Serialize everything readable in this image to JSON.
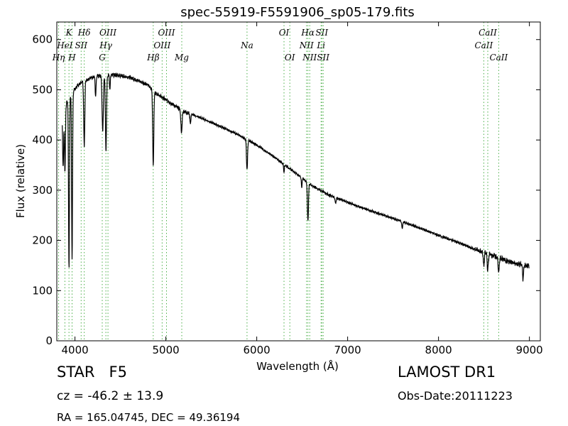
{
  "chart_data": {
    "type": "line",
    "title": "spec-55919-F5591906_sp05-179.fits",
    "xlabel": "Wavelength (Å)",
    "ylabel": "Flux (relative)",
    "xlim": [
      3800,
      9120
    ],
    "ylim": [
      0,
      635
    ],
    "xticks": [
      4000,
      5000,
      6000,
      7000,
      8000,
      9000
    ],
    "yticks": [
      0,
      100,
      200,
      300,
      400,
      500,
      600
    ],
    "grid": false,
    "legend": "none",
    "line_color": "#000000",
    "marker_color": "#4daf4a",
    "continuum": [
      [
        3860,
        455
      ],
      [
        3900,
        470
      ],
      [
        3950,
        490
      ],
      [
        4000,
        502
      ],
      [
        4050,
        512
      ],
      [
        4100,
        518
      ],
      [
        4200,
        526
      ],
      [
        4300,
        528
      ],
      [
        4400,
        530
      ],
      [
        4500,
        528
      ],
      [
        4600,
        525
      ],
      [
        4700,
        518
      ],
      [
        4800,
        510
      ],
      [
        4900,
        492
      ],
      [
        5000,
        480
      ],
      [
        5100,
        468
      ],
      [
        5200,
        457
      ],
      [
        5400,
        443
      ],
      [
        5600,
        427
      ],
      [
        5800,
        410
      ],
      [
        6000,
        390
      ],
      [
        6200,
        365
      ],
      [
        6400,
        338
      ],
      [
        6600,
        310
      ],
      [
        6800,
        290
      ],
      [
        7000,
        276
      ],
      [
        7200,
        262
      ],
      [
        7400,
        250
      ],
      [
        7600,
        238
      ],
      [
        7800,
        224
      ],
      [
        8000,
        210
      ],
      [
        8200,
        197
      ],
      [
        8400,
        182
      ],
      [
        8600,
        170
      ],
      [
        8800,
        156
      ],
      [
        9000,
        148
      ]
    ],
    "absorption": [
      {
        "x": 3870,
        "depth": 110,
        "width": 6
      },
      {
        "x": 3890,
        "depth": 130,
        "width": 5
      },
      {
        "x": 3934,
        "depth": 340,
        "width": 5
      },
      {
        "x": 3968,
        "depth": 330,
        "width": 5
      },
      {
        "x": 4102,
        "depth": 130,
        "width": 6
      },
      {
        "x": 4227,
        "depth": 40,
        "width": 5
      },
      {
        "x": 4305,
        "depth": 110,
        "width": 7
      },
      {
        "x": 4341,
        "depth": 150,
        "width": 6
      },
      {
        "x": 4384,
        "depth": 30,
        "width": 4
      },
      {
        "x": 4861,
        "depth": 150,
        "width": 6
      },
      {
        "x": 5172,
        "depth": 45,
        "width": 7
      },
      {
        "x": 5270,
        "depth": 20,
        "width": 5
      },
      {
        "x": 5893,
        "depth": 60,
        "width": 6
      },
      {
        "x": 6300,
        "depth": 15,
        "width": 4
      },
      {
        "x": 6495,
        "depth": 20,
        "width": 4
      },
      {
        "x": 6563,
        "depth": 75,
        "width": 6
      },
      {
        "x": 6867,
        "depth": 12,
        "width": 5
      },
      {
        "x": 7600,
        "depth": 14,
        "width": 6
      },
      {
        "x": 8498,
        "depth": 26,
        "width": 6
      },
      {
        "x": 8542,
        "depth": 34,
        "width": 6
      },
      {
        "x": 8662,
        "depth": 30,
        "width": 6
      },
      {
        "x": 8930,
        "depth": 28,
        "width": 5
      }
    ],
    "line_markers": [
      {
        "x": 3820,
        "label": "Hη",
        "row": 3
      },
      {
        "x": 3889,
        "label": "HeI",
        "row": 2
      },
      {
        "x": 3934,
        "label": "K",
        "row": 1
      },
      {
        "x": 3968,
        "label": "H",
        "row": 3
      },
      {
        "x": 4068,
        "label": "SII",
        "row": 2
      },
      {
        "x": 4102,
        "label": "Hδ",
        "row": 1
      },
      {
        "x": 4300,
        "label": "G",
        "row": 3
      },
      {
        "x": 4340,
        "label": "Hγ",
        "row": 2
      },
      {
        "x": 4363,
        "label": "OIII",
        "row": 1
      },
      {
        "x": 4861,
        "label": "Hβ",
        "row": 3
      },
      {
        "x": 4959,
        "label": "OIII",
        "row": 2
      },
      {
        "x": 5007,
        "label": "OIII",
        "row": 1
      },
      {
        "x": 5175,
        "label": "Mg",
        "row": 3
      },
      {
        "x": 5893,
        "label": "Na",
        "row": 2
      },
      {
        "x": 6300,
        "label": "OI",
        "row": 1
      },
      {
        "x": 6364,
        "label": "OI",
        "row": 3
      },
      {
        "x": 6548,
        "label": "NII",
        "row": 2
      },
      {
        "x": 6563,
        "label": "Hα",
        "row": 1
      },
      {
        "x": 6583,
        "label": "NII",
        "row": 3
      },
      {
        "x": 6708,
        "label": "Li",
        "row": 2
      },
      {
        "x": 6716,
        "label": "SII",
        "row": 1
      },
      {
        "x": 6731,
        "label": "SII",
        "row": 3
      },
      {
        "x": 8498,
        "label": "CaII",
        "row": 2
      },
      {
        "x": 8542,
        "label": "CaII",
        "row": 1
      },
      {
        "x": 8662,
        "label": "CaII",
        "row": 3
      }
    ]
  },
  "info": {
    "object_class": "STAR",
    "subclass": "F5",
    "survey": "LAMOST DR1",
    "cz": "cz = -46.2 ± 13.9",
    "obs_date": "Obs-Date:20111223",
    "coords": "RA = 165.04745, DEC = 49.36194"
  }
}
